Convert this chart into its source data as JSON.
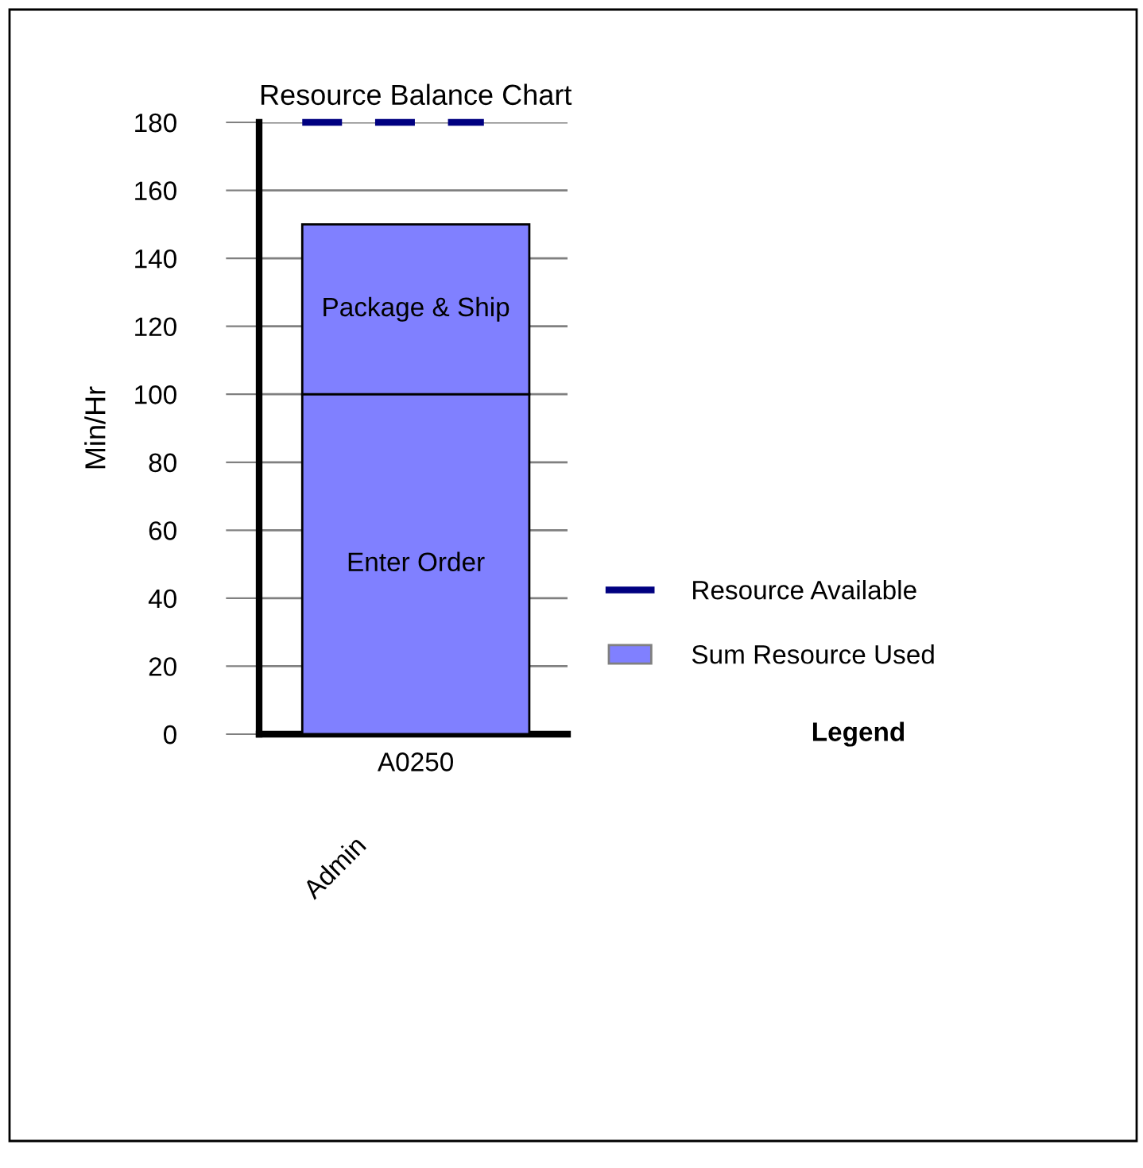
{
  "chart_data": {
    "type": "bar",
    "title": "Resource Balance Chart",
    "ylabel": "Min/Hr",
    "xlabel": "Admin",
    "legend_title": "Legend",
    "categories": [
      "A0250"
    ],
    "stacked": true,
    "series": [
      {
        "name": "Enter Order",
        "color": "#8080ff",
        "values": [
          100
        ]
      },
      {
        "name": "Package & Ship",
        "color": "#8080ff",
        "values": [
          50
        ]
      }
    ],
    "ref_lines": [
      {
        "axis": "y",
        "value": 180,
        "label": "Resource Available",
        "color": "#000080",
        "line_style": "dashed"
      }
    ],
    "annotations": [
      "Sum Resource Used"
    ],
    "ylim": [
      0,
      180
    ],
    "yticks": [
      0,
      20,
      40,
      60,
      80,
      100,
      120,
      140,
      160,
      180
    ],
    "grid": "y",
    "legend": "right"
  }
}
